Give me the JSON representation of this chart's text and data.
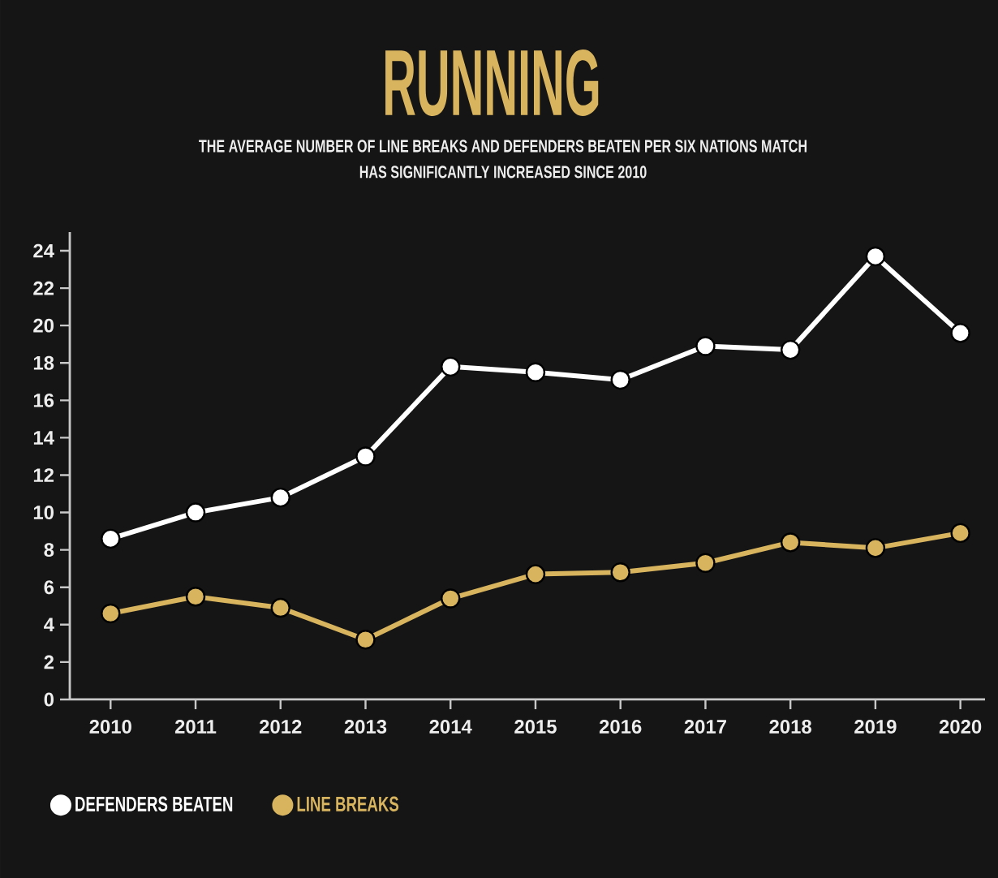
{
  "chart_data": {
    "type": "line",
    "title": "RUNNING",
    "subtitle": "THE AVERAGE NUMBER OF LINE BREAKS AND DEFENDERS BEATEN PER SIX NATIONS MATCH HAS SIGNIFICANTLY INCREASED SINCE 2010",
    "categories": [
      "2010",
      "2011",
      "2012",
      "2013",
      "2014",
      "2015",
      "2016",
      "2017",
      "2018",
      "2019",
      "2020"
    ],
    "series": [
      {
        "name": "DEFENDERS BEATEN",
        "color": "#ffffff",
        "values": [
          8.6,
          10.0,
          10.8,
          13.0,
          17.8,
          17.5,
          17.1,
          18.9,
          18.7,
          23.7,
          19.6
        ]
      },
      {
        "name": "LINE BREAKS",
        "color": "#d8b45e",
        "values": [
          4.6,
          5.5,
          4.9,
          3.2,
          5.4,
          6.7,
          6.8,
          7.3,
          8.4,
          8.1,
          8.9
        ]
      }
    ],
    "ylim": [
      0,
      25
    ],
    "yticks": [
      0,
      2,
      4,
      6,
      8,
      10,
      12,
      14,
      16,
      18,
      20,
      22,
      24
    ],
    "legend": "bottom left",
    "marker": "circle",
    "line_style": "solid"
  }
}
